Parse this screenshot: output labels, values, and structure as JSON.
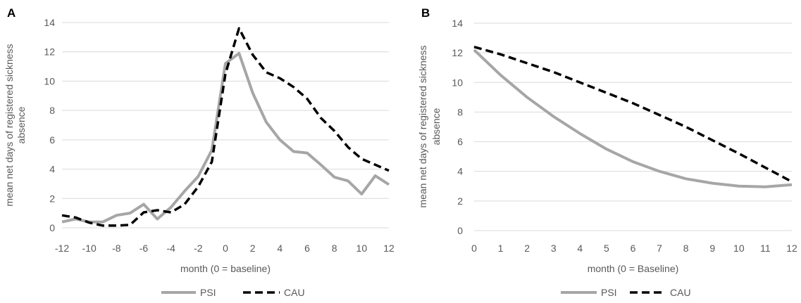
{
  "colors": {
    "psi": "#a6a6a6",
    "cau": "#000000",
    "grid": "#d9d9d9",
    "text": "#595959"
  },
  "chart_data": [
    {
      "type": "line",
      "panel_label": "A",
      "xlabel": "month (0 = baseline)",
      "ylabel_lines": [
        "mean net days of registered sickness",
        "absence"
      ],
      "xlim": [
        -12,
        12
      ],
      "ylim": [
        0,
        14
      ],
      "yticks": [
        0,
        2,
        4,
        6,
        8,
        10,
        12,
        14
      ],
      "xtick_labels": [
        "-12",
        "-10",
        "-8",
        "-6",
        "-4",
        "-2",
        "0",
        "2",
        "4",
        "6",
        "8",
        "10",
        "12"
      ],
      "xtick_values": [
        -12,
        -10,
        -8,
        -6,
        -4,
        -2,
        0,
        2,
        4,
        6,
        8,
        10,
        12
      ],
      "grid": true,
      "legend_position": "bottom",
      "x": [
        -12,
        -11,
        -10,
        -9,
        -8,
        -7,
        -6,
        -5,
        -4,
        -3,
        -2,
        -1,
        0,
        1,
        2,
        3,
        4,
        5,
        6,
        7,
        8,
        9,
        10,
        11,
        12
      ],
      "series": [
        {
          "name": "PSI",
          "style": "solid",
          "values": [
            0.4,
            0.6,
            0.4,
            0.4,
            0.85,
            1.0,
            1.6,
            0.6,
            1.4,
            2.5,
            3.5,
            5.3,
            11.2,
            11.9,
            9.2,
            7.2,
            6.0,
            5.2,
            5.1,
            4.3,
            3.45,
            3.2,
            2.3,
            3.55,
            2.95
          ]
        },
        {
          "name": "CAU",
          "style": "dashed",
          "values": [
            0.85,
            0.7,
            0.35,
            0.15,
            0.15,
            0.2,
            1.05,
            1.2,
            1.05,
            1.6,
            2.8,
            4.5,
            10.5,
            13.6,
            11.8,
            10.6,
            10.2,
            9.6,
            8.8,
            7.5,
            6.6,
            5.5,
            4.7,
            4.3,
            3.9
          ]
        }
      ]
    },
    {
      "type": "line",
      "panel_label": "B",
      "xlabel": "month (0 = Baseline)",
      "ylabel_lines": [
        "mean net days of registered sickness",
        "absence"
      ],
      "xlim": [
        0,
        12
      ],
      "ylim": [
        0,
        14
      ],
      "yticks": [
        0,
        2,
        4,
        6,
        8,
        10,
        12,
        14
      ],
      "xtick_labels": [
        "0",
        "1",
        "2",
        "3",
        "4",
        "5",
        "6",
        "7",
        "8",
        "9",
        "10",
        "11",
        "12"
      ],
      "xtick_values": [
        0,
        1,
        2,
        3,
        4,
        5,
        6,
        7,
        8,
        9,
        10,
        11,
        12
      ],
      "grid": true,
      "legend_position": "bottom",
      "x": [
        0,
        1,
        2,
        3,
        4,
        5,
        6,
        7,
        8,
        9,
        10,
        11,
        12
      ],
      "series": [
        {
          "name": "PSI",
          "style": "solid",
          "values": [
            12.2,
            10.5,
            9.0,
            7.7,
            6.55,
            5.5,
            4.65,
            4.0,
            3.5,
            3.2,
            3.0,
            2.95,
            3.1
          ]
        },
        {
          "name": "CAU",
          "style": "dashed",
          "values": [
            12.4,
            11.9,
            11.3,
            10.7,
            10.0,
            9.3,
            8.6,
            7.8,
            7.0,
            6.1,
            5.2,
            4.25,
            3.3
          ]
        }
      ]
    }
  ]
}
